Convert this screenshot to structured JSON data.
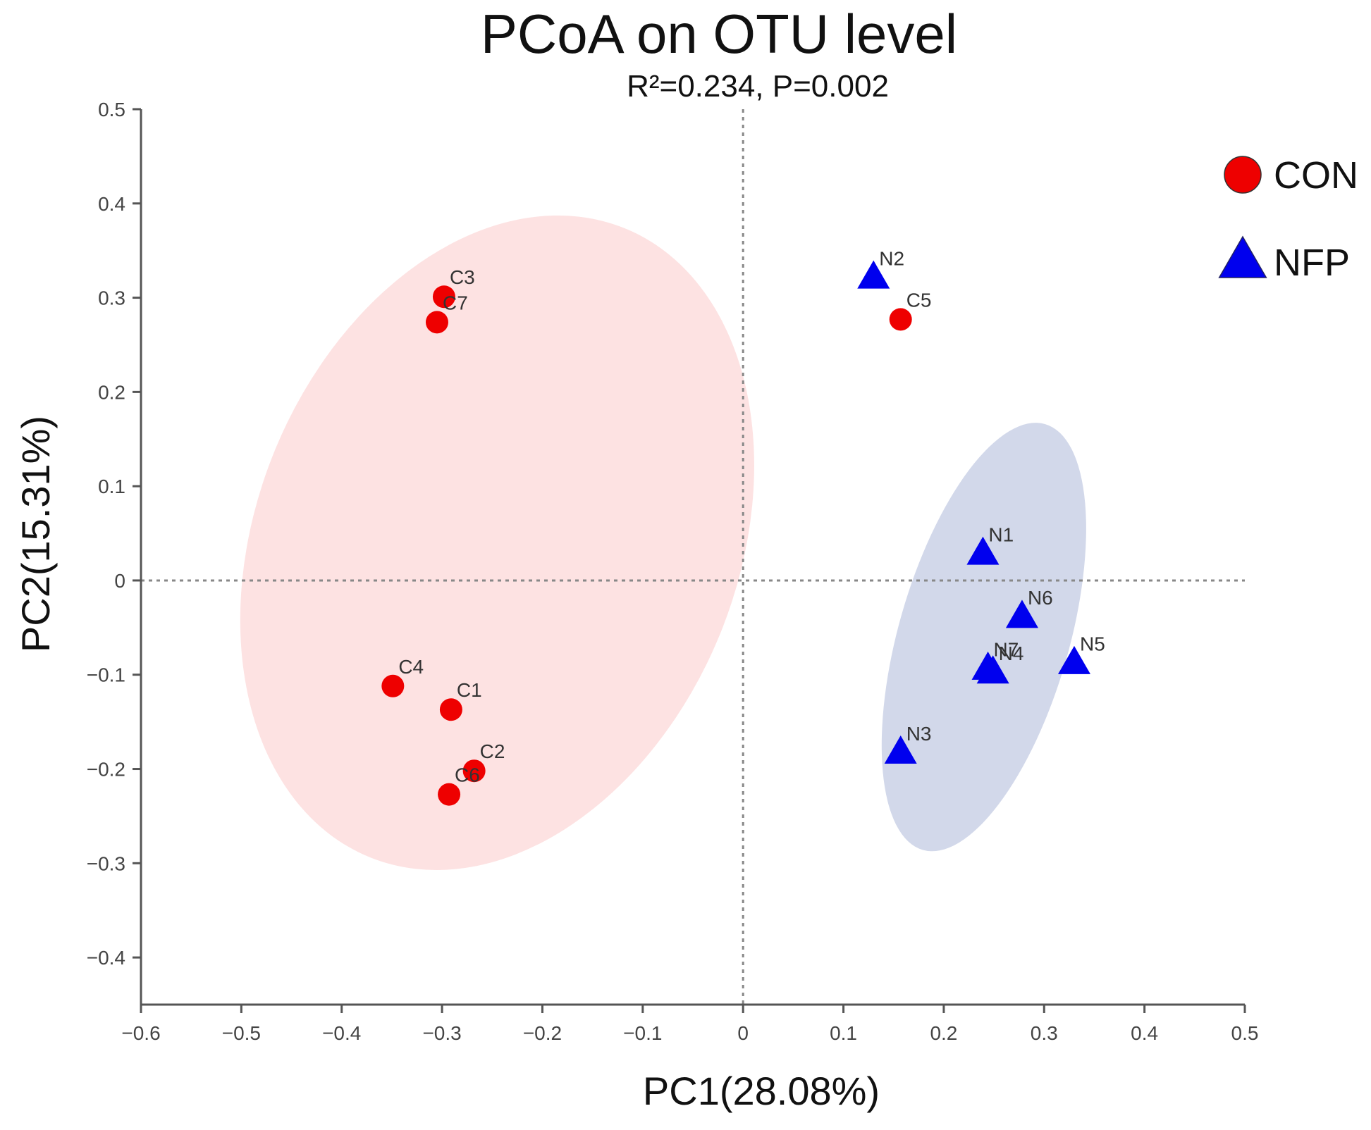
{
  "chart_data": {
    "type": "scatter",
    "title": "PCoA on OTU level",
    "subtitle": "R²=0.234, P=0.002",
    "xlabel": "PC1(28.08%)",
    "ylabel": "PC2(15.31%)",
    "xlim": [
      -0.6,
      0.5
    ],
    "ylim": [
      -0.45,
      0.5
    ],
    "xticks": [
      -0.6,
      -0.5,
      -0.4,
      -0.3,
      -0.2,
      -0.1,
      0,
      0.1,
      0.2,
      0.3,
      0.4,
      0.5
    ],
    "xtick_labels": [
      "−0.6",
      "−0.5",
      "−0.4",
      "−0.3",
      "−0.2",
      "−0.1",
      "0",
      "0.1",
      "0.2",
      "0.3",
      "0.4",
      "0.5"
    ],
    "yticks": [
      0.5,
      0.4,
      0.3,
      0.2,
      0.1,
      0,
      -0.1,
      -0.2,
      -0.3,
      -0.4
    ],
    "ytick_labels": [
      "0.5",
      "0.4",
      "0.3",
      "0.2",
      "0.1",
      "0",
      "−0.1",
      "−0.2",
      "−0.3",
      "−0.4"
    ],
    "reference_lines": {
      "x": 0,
      "y": 0,
      "style": "dotted"
    },
    "legend_position": "top-right",
    "series": [
      {
        "name": "CON",
        "marker": "circle",
        "color": "#ee0000",
        "ellipse": {
          "center": [
            -0.245,
            0.04
          ],
          "semi_axes": [
            0.24,
            0.36
          ],
          "rotation_deg": 22,
          "fill": "#fde2e2"
        },
        "points": [
          {
            "label": "C1",
            "x": -0.291,
            "y": -0.137
          },
          {
            "label": "C2",
            "x": -0.268,
            "y": -0.202
          },
          {
            "label": "C3",
            "x": -0.298,
            "y": 0.301
          },
          {
            "label": "C4",
            "x": -0.349,
            "y": -0.112
          },
          {
            "label": "C5",
            "x": 0.157,
            "y": 0.277
          },
          {
            "label": "C6",
            "x": -0.293,
            "y": -0.227
          },
          {
            "label": "C7",
            "x": -0.305,
            "y": 0.274
          }
        ]
      },
      {
        "name": "NFP",
        "marker": "triangle",
        "color": "#0000ee",
        "ellipse": {
          "center": [
            0.24,
            -0.06
          ],
          "semi_axes": [
            0.085,
            0.235
          ],
          "rotation_deg": 16,
          "fill": "#d2d8ea"
        },
        "points": [
          {
            "label": "N1",
            "x": 0.239,
            "y": 0.028
          },
          {
            "label": "N2",
            "x": 0.13,
            "y": 0.321
          },
          {
            "label": "N3",
            "x": 0.157,
            "y": -0.183
          },
          {
            "label": "N4",
            "x": 0.249,
            "y": -0.098
          },
          {
            "label": "N5",
            "x": 0.33,
            "y": -0.088
          },
          {
            "label": "N6",
            "x": 0.278,
            "y": -0.039
          },
          {
            "label": "N7",
            "x": 0.244,
            "y": -0.094
          }
        ]
      }
    ]
  }
}
